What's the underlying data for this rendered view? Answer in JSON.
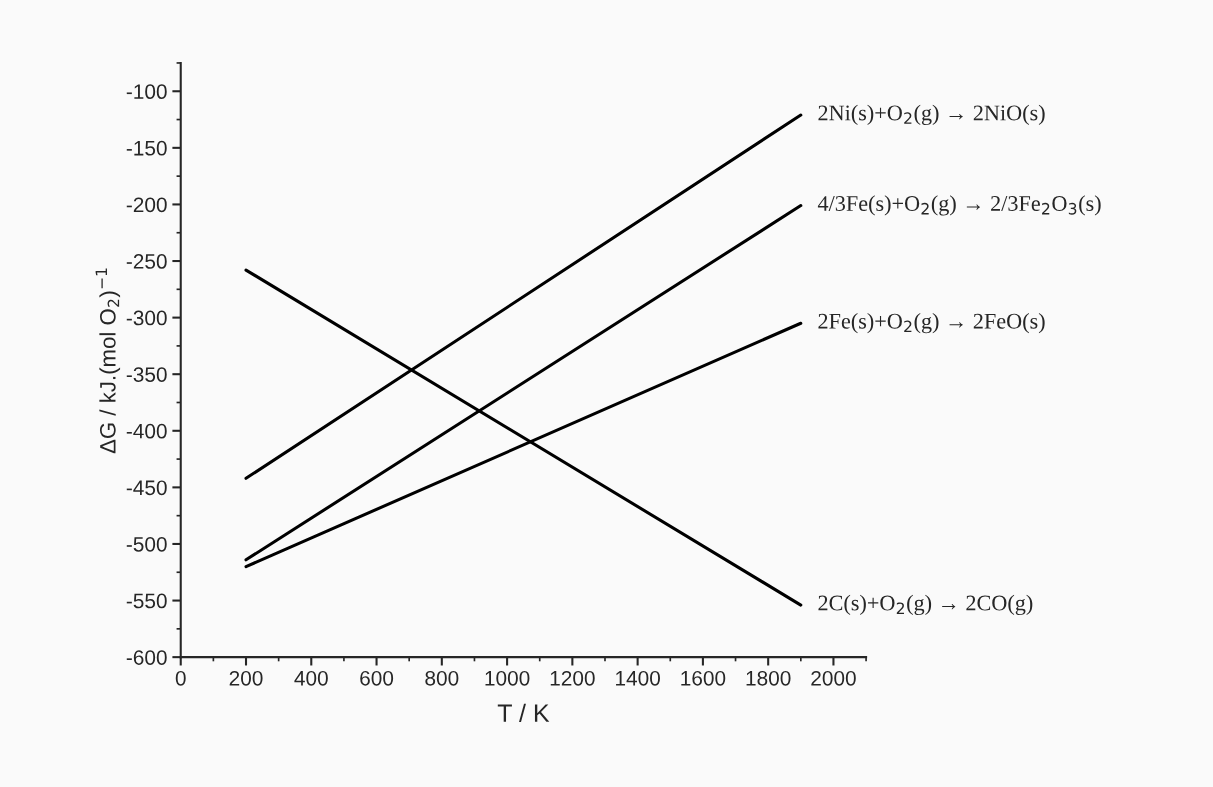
{
  "chart_data": {
    "type": "line",
    "xlabel": "T / K",
    "ylabel": "ΔG / kJ.(mol O$_{2}$)$^{−1}$",
    "x": [
      200,
      1900
    ],
    "series": [
      {
        "name": "2Ni(s)+O$_{2}$(g) → 2NiO(s)",
        "color": "#000000",
        "values": [
          -442,
          -121
        ]
      },
      {
        "name": "4/3Fe(s)+O$_{2}$(g) → 2/3Fe$_{2}$O$_{3}$(s)",
        "color": "#000000",
        "values": [
          -514,
          -201
        ]
      },
      {
        "name": "2Fe(s)+O$_{2}$(g) → 2FeO(s)",
        "color": "#000000",
        "values": [
          -520,
          -305
        ]
      },
      {
        "name": "2C(s)+O$_{2}$(g) → 2CO(g)",
        "color": "#000000",
        "values": [
          -258,
          -554
        ]
      }
    ],
    "xlim": [
      0,
      2100
    ],
    "xticks": [
      0,
      200,
      400,
      600,
      800,
      1000,
      1200,
      1400,
      1600,
      1800,
      2000
    ],
    "ylim": [
      -600,
      -75
    ],
    "yticks": [
      -600,
      -550,
      -500,
      -450,
      -400,
      -350,
      -300,
      -250,
      -200,
      -150,
      -100
    ],
    "grid": false,
    "legend": false,
    "marker": "none",
    "line_style": "solid"
  }
}
